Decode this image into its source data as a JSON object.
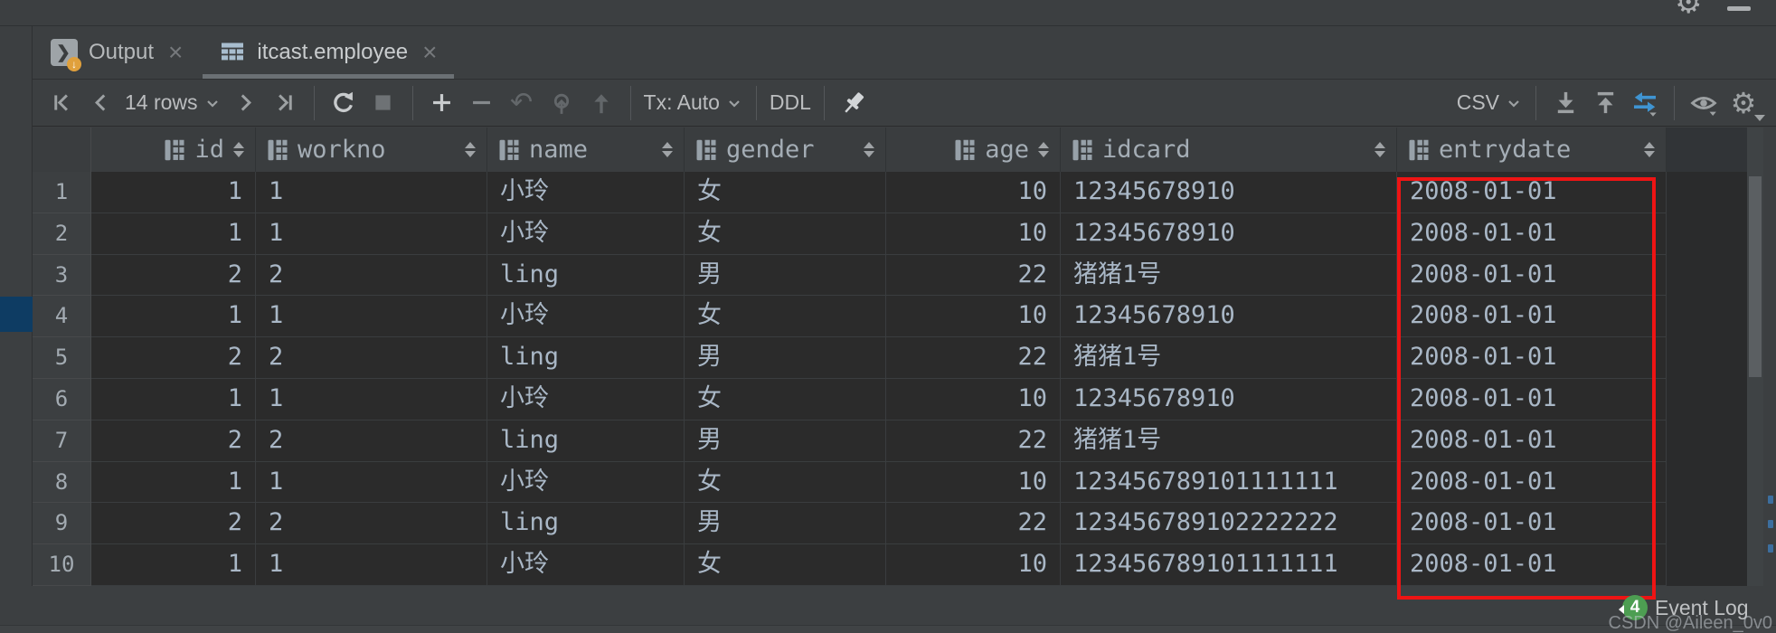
{
  "tabs": [
    {
      "label": "Output",
      "active": false
    },
    {
      "label": "itcast.employee",
      "active": true
    }
  ],
  "toolbar": {
    "rows_label": "14 rows",
    "tx_label": "Tx: Auto",
    "ddl_label": "DDL",
    "format_label": "CSV"
  },
  "glyphs": {
    "close": "×",
    "refresh": "↻",
    "undo": "↶",
    "gear": "⚙",
    "output_chevron": "❯",
    "output_arrow": "↓"
  },
  "table": {
    "columns": [
      {
        "label": "id"
      },
      {
        "label": "workno"
      },
      {
        "label": "name"
      },
      {
        "label": "gender"
      },
      {
        "label": "age"
      },
      {
        "label": "idcard"
      },
      {
        "label": "entrydate"
      }
    ],
    "rows": [
      {
        "num": "1",
        "values": [
          "1",
          "1",
          "小玲",
          "女",
          "10",
          "12345678910",
          "2008-01-01"
        ]
      },
      {
        "num": "2",
        "values": [
          "1",
          "1",
          "小玲",
          "女",
          "10",
          "12345678910",
          "2008-01-01"
        ]
      },
      {
        "num": "3",
        "values": [
          "2",
          "2",
          "ling",
          "男",
          "22",
          "猪猪1号",
          "2008-01-01"
        ]
      },
      {
        "num": "4",
        "values": [
          "1",
          "1",
          "小玲",
          "女",
          "10",
          "12345678910",
          "2008-01-01"
        ]
      },
      {
        "num": "5",
        "values": [
          "2",
          "2",
          "ling",
          "男",
          "22",
          "猪猪1号",
          "2008-01-01"
        ]
      },
      {
        "num": "6",
        "values": [
          "1",
          "1",
          "小玲",
          "女",
          "10",
          "12345678910",
          "2008-01-01"
        ]
      },
      {
        "num": "7",
        "values": [
          "2",
          "2",
          "ling",
          "男",
          "22",
          "猪猪1号",
          "2008-01-01"
        ]
      },
      {
        "num": "8",
        "values": [
          "1",
          "1",
          "小玲",
          "女",
          "10",
          "123456789101111111",
          "2008-01-01"
        ]
      },
      {
        "num": "9",
        "values": [
          "2",
          "2",
          "ling",
          "男",
          "22",
          "123456789102222222",
          "2008-01-01"
        ]
      },
      {
        "num": "10",
        "values": [
          "1",
          "1",
          "小玲",
          "女",
          "10",
          "123456789101111111",
          "2008-01-01"
        ]
      }
    ]
  },
  "status": {
    "event_log_label": "Event Log",
    "badge_count": "4",
    "watermark": "CSDN @Aileen_0v0"
  },
  "colors": {
    "highlight_red": "#ee1414",
    "badge_green": "#4d9e52",
    "compare_blue": "#3f94d2",
    "gutter_selection_navy": "#0e3c63"
  }
}
